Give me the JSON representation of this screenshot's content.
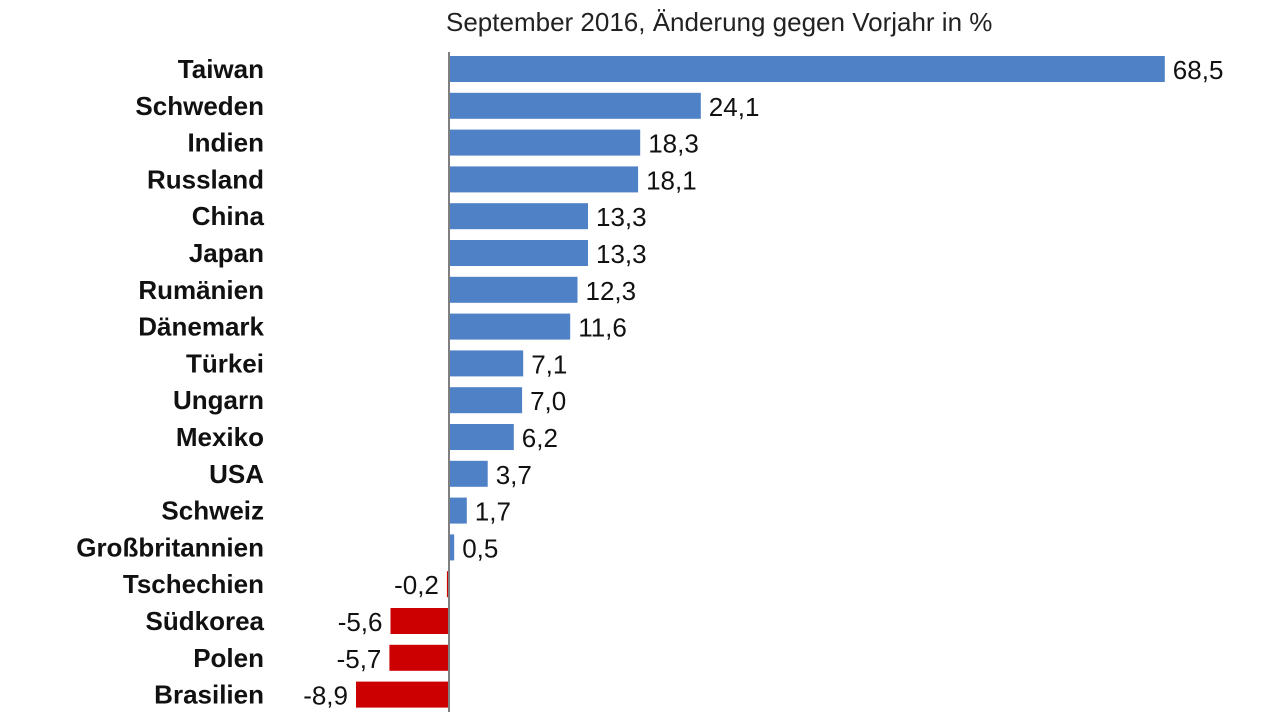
{
  "chart_data": {
    "type": "bar",
    "orientation": "horizontal",
    "title": "September 2016, Änderung gegen Vorjahr in %",
    "categories": [
      "Taiwan",
      "Schweden",
      "Indien",
      "Russland",
      "China",
      "Japan",
      "Rumänien",
      "Dänemark",
      "Türkei",
      "Ungarn",
      "Mexiko",
      "USA",
      "Schweiz",
      "Großbritannien",
      "Tschechien",
      "Südkorea",
      "Polen",
      "Brasilien"
    ],
    "values": [
      68.5,
      24.1,
      18.3,
      18.1,
      13.3,
      13.3,
      12.3,
      11.6,
      7.1,
      7.0,
      6.2,
      3.7,
      1.7,
      0.5,
      -0.2,
      -5.6,
      -5.7,
      -8.9
    ],
    "value_labels": [
      "68,5",
      "24,1",
      "18,3",
      "18,1",
      "13,3",
      "13,3",
      "12,3",
      "11,6",
      "7,1",
      "7,0",
      "6,2",
      "3,7",
      "1,7",
      "0,5",
      "-0,2",
      "-5,6",
      "-5,7",
      "-8,9"
    ],
    "colors": {
      "positive": "#4f81c7",
      "negative": "#cc0000",
      "axis": "#7f7f7f"
    },
    "xlabel": "",
    "ylabel": "",
    "grid": false,
    "legend": "none"
  }
}
